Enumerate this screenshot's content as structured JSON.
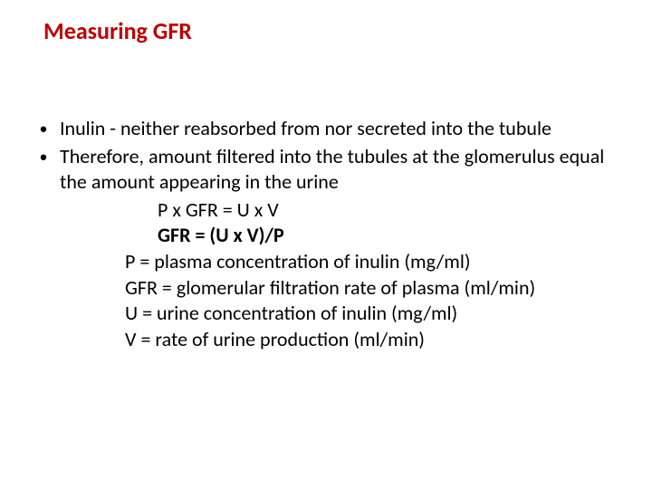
{
  "title": "Measuring GFR",
  "bullets": [
    "Inulin  - neither reabsorbed from nor secreted into the tubule",
    "Therefore,  amount filtered into the tubules at the glomerulus equal the amount appearing in the urine"
  ],
  "equations": [
    "P x GFR = U x V",
    "GFR = (U x V)/P"
  ],
  "definitions": [
    "P = plasma concentration of inulin  (mg/ml)",
    "GFR = glomerular filtration rate of plasma (ml/min)",
    "U = urine concentration of inulin (mg/ml)",
    "V = rate of urine production (ml/min)"
  ],
  "colors": {
    "title": "#c00000",
    "body": "#000000",
    "background": "#ffffff"
  },
  "typography": {
    "title_fontsize": 26,
    "body_fontsize": 22,
    "font_family": "Calibri"
  }
}
